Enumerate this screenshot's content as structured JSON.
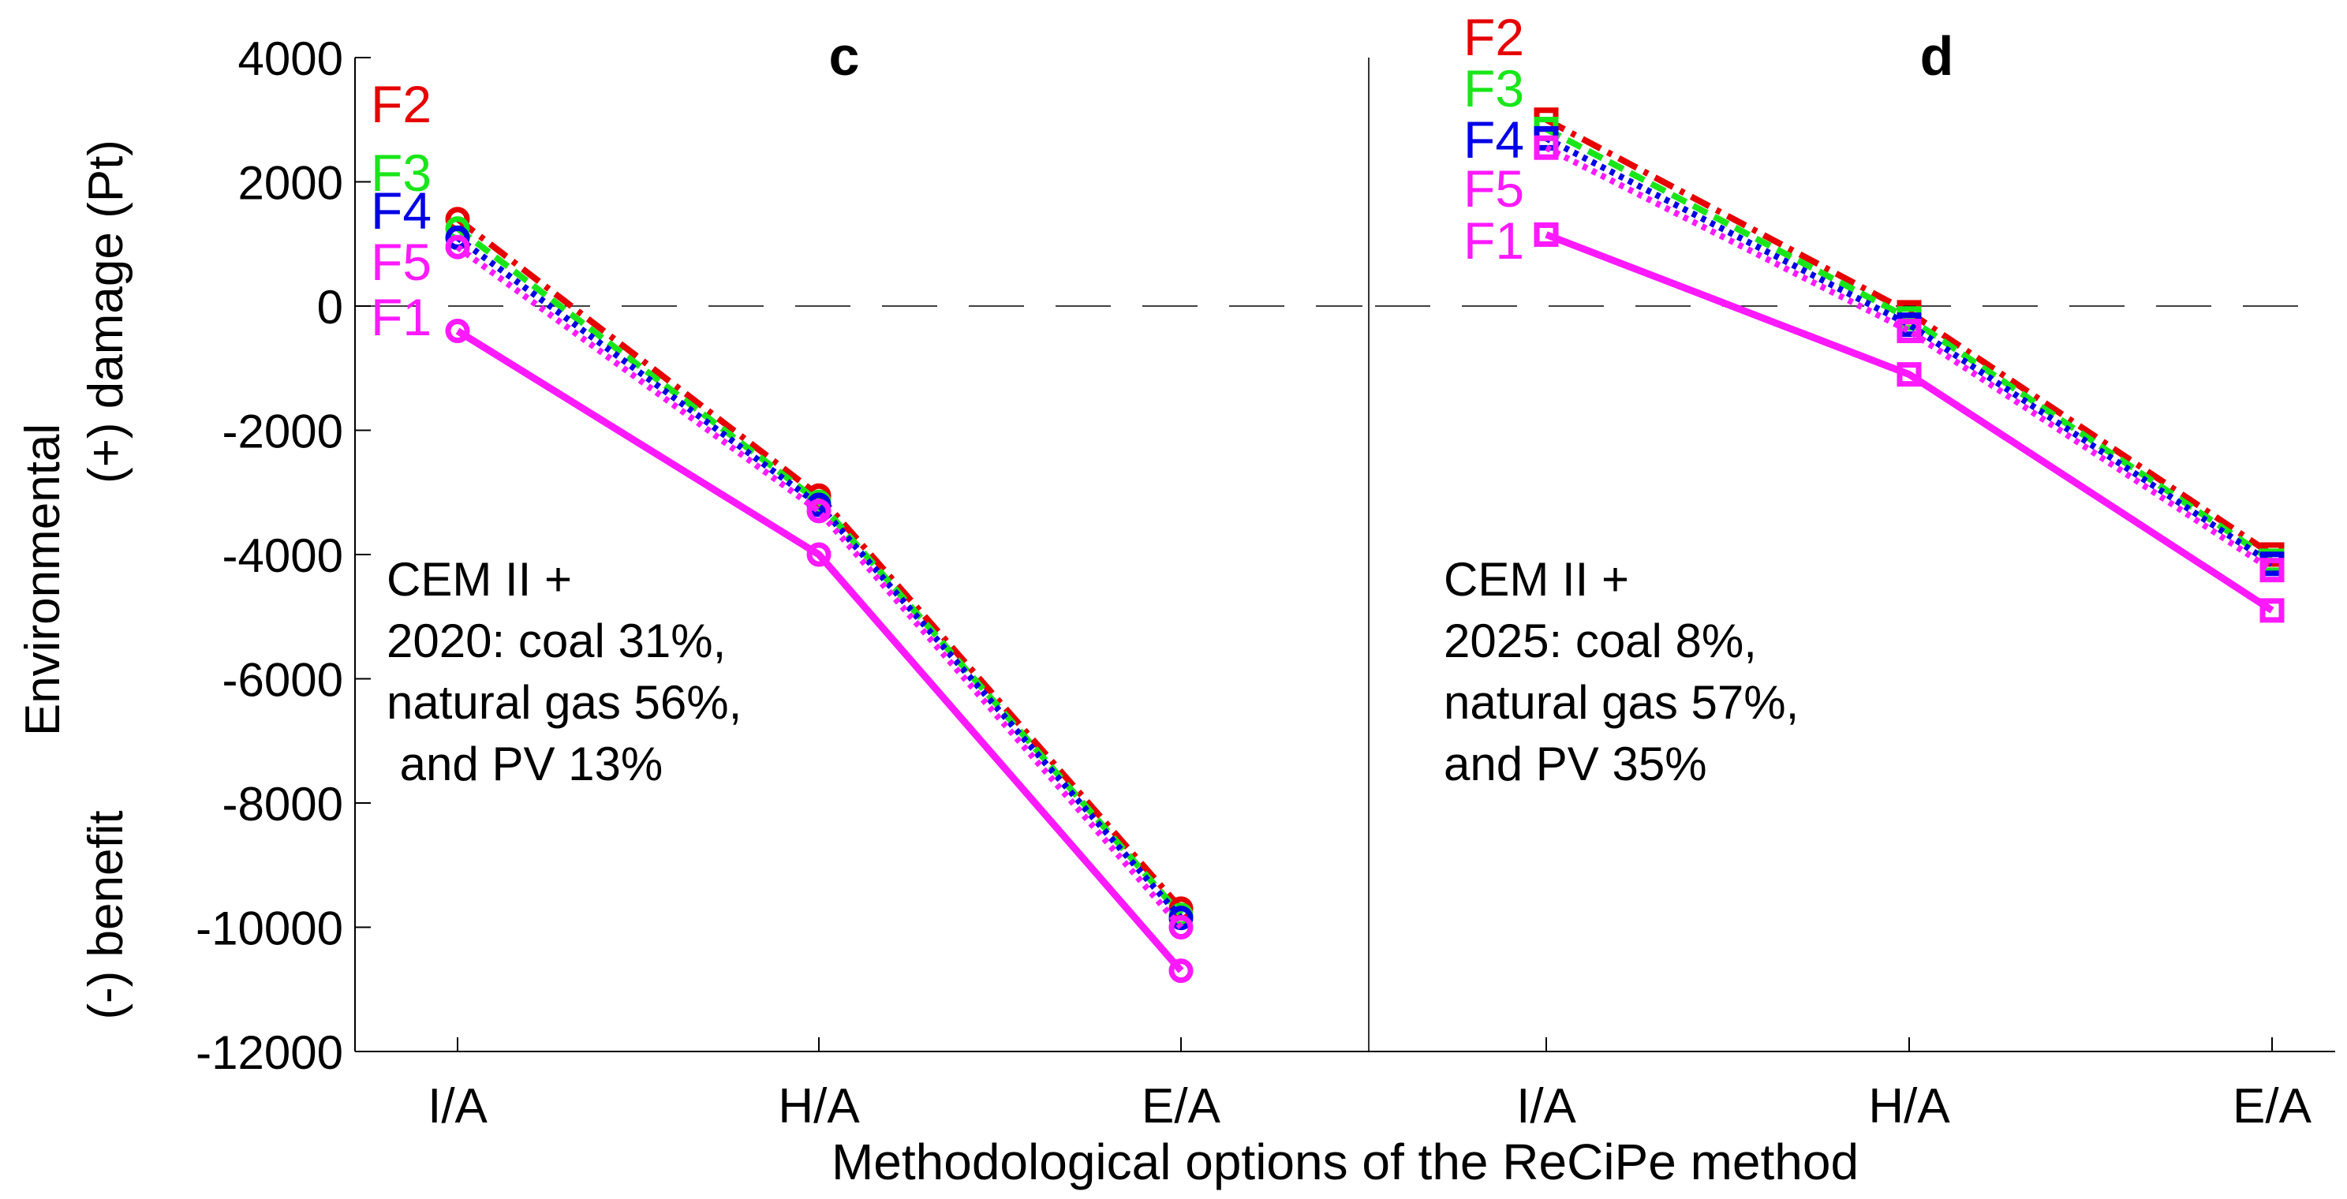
{
  "figure": {
    "ylabel_lines": [
      "Environmental",
      "(+) damage (Pt)",
      "(-) benefit"
    ],
    "xlabel": "Methodological options of the ReCiPe method",
    "colors": {
      "F1": "#ff19ff",
      "F2": "#e60000",
      "F3": "#19e619",
      "F4": "#0000e6",
      "F5": "#ff19ff",
      "axis": "#000000",
      "zero_line": "#000000"
    }
  },
  "chart_data": [
    {
      "type": "line",
      "panel": "c",
      "title": "c",
      "categories": [
        "I/A",
        "H/A",
        "E/A"
      ],
      "ylim": [
        -12000,
        4000
      ],
      "yticks": [
        4000,
        2000,
        0,
        -2000,
        -4000,
        -6000,
        -8000,
        -10000,
        -12000
      ],
      "ytick_labels": [
        "4000",
        "2000",
        "0",
        "-2000",
        "-4000",
        "-6000",
        "-8000",
        "-10000",
        "-12000"
      ],
      "marker": "circle",
      "annotation_lines": [
        "CEM II +",
        "2020: coal 31%,",
        "natural gas 56%,",
        " and PV 13%"
      ],
      "series": [
        {
          "name": "F2",
          "style": "dash-dot",
          "values": [
            1400,
            -3050,
            -9700
          ]
        },
        {
          "name": "F3",
          "style": "dashed",
          "values": [
            1250,
            -3150,
            -9800
          ]
        },
        {
          "name": "F4",
          "style": "dotted",
          "values": [
            1100,
            -3200,
            -9850
          ]
        },
        {
          "name": "F5",
          "style": "dotted",
          "values": [
            950,
            -3300,
            -10000
          ]
        },
        {
          "name": "F1",
          "style": "solid",
          "values": [
            -400,
            -4000,
            -10700
          ]
        }
      ]
    },
    {
      "type": "line",
      "panel": "d",
      "title": "d",
      "categories": [
        "I/A",
        "H/A",
        "E/A"
      ],
      "ylim": [
        -12000,
        4000
      ],
      "marker": "square",
      "annotation_lines": [
        "CEM II +",
        "2025: coal 8%,",
        "natural gas 57%,",
        "and PV 35%"
      ],
      "series": [
        {
          "name": "F2",
          "style": "dash-dot",
          "values": [
            3000,
            -100,
            -4000
          ]
        },
        {
          "name": "F3",
          "style": "dashed",
          "values": [
            2850,
            -200,
            -4100
          ]
        },
        {
          "name": "F4",
          "style": "dotted",
          "values": [
            2700,
            -300,
            -4150
          ]
        },
        {
          "name": "F5",
          "style": "dotted",
          "values": [
            2550,
            -400,
            -4250
          ]
        },
        {
          "name": "F1",
          "style": "solid",
          "values": [
            1150,
            -1100,
            -4900
          ]
        }
      ]
    }
  ]
}
